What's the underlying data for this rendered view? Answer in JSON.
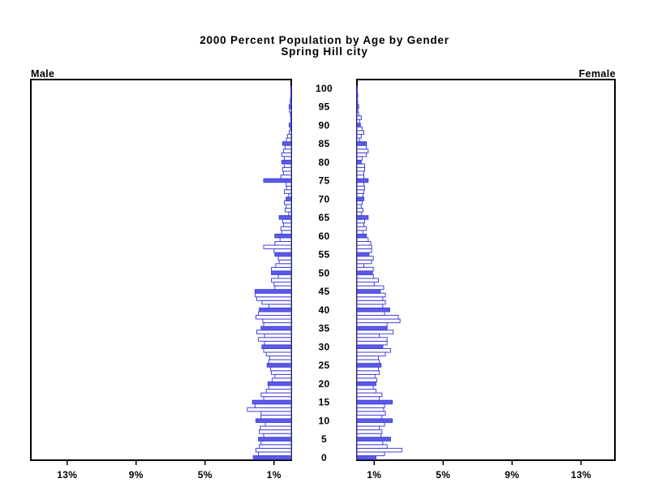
{
  "title": {
    "line1": "2000 Percent Population by Age by Gender",
    "line2": "Spring Hill city"
  },
  "panel_labels": {
    "male": "Male",
    "female": "Female"
  },
  "chart_data": {
    "type": "bar",
    "variant": "population_pyramid",
    "title": "2000 Percent Population by Age by Gender",
    "subtitle": "Spring Hill city",
    "x_unit": "percent of total population",
    "x_axis": {
      "male_tick_values": [
        13,
        9,
        5,
        1
      ],
      "male_tick_labels": [
        "13%",
        "9%",
        "5%",
        "1%"
      ],
      "female_tick_values": [
        1,
        5,
        9,
        13
      ],
      "female_tick_labels": [
        "1%",
        "5%",
        "9%",
        "13%"
      ],
      "x_max": 15.1
    },
    "age_axis": {
      "min": 0,
      "max": 100,
      "tick_labels": [
        "0",
        "5",
        "10",
        "15",
        "20",
        "25",
        "30",
        "35",
        "40",
        "45",
        "50",
        "55",
        "60",
        "65",
        "70",
        "75",
        "80",
        "85",
        "90",
        "95",
        "100"
      ]
    },
    "bar_style_rule": "single-year-of-age bars; ages at multiples of 5 are solid blue, other ages are white with blue outline",
    "colors": {
      "bar_outline": "#4343d9",
      "bar_solid_fill": "#5b5be8",
      "bar_open_fill": "#ffffff",
      "axis": "#000000",
      "text": "#000000"
    },
    "legend": "none",
    "grid": "off",
    "series": [
      {
        "name": "Male",
        "ages": "0-100 single years of age",
        "values": [
          2.2,
          1.9,
          2.05,
          1.85,
          1.75,
          1.9,
          1.6,
          1.85,
          1.8,
          1.5,
          2.05,
          1.75,
          1.75,
          2.55,
          2.1,
          2.25,
          1.6,
          1.75,
          1.45,
          1.3,
          1.35,
          1.1,
          0.95,
          1.15,
          1.2,
          1.4,
          1.3,
          1.25,
          1.45,
          1.6,
          1.7,
          1.55,
          1.9,
          1.55,
          2.0,
          1.75,
          1.6,
          1.65,
          2.05,
          1.9,
          1.85,
          1.3,
          1.7,
          2.0,
          2.1,
          2.1,
          0.95,
          1.0,
          1.15,
          0.75,
          1.15,
          1.15,
          0.9,
          0.7,
          0.75,
          0.95,
          1.0,
          1.6,
          0.95,
          0.65,
          0.95,
          0.55,
          0.6,
          0.45,
          0.5,
          0.7,
          0.15,
          0.35,
          0.3,
          0.4,
          0.3,
          0.15,
          0.4,
          0.27,
          0.3,
          1.6,
          0.6,
          0.45,
          0.5,
          0.4,
          0.55,
          0.4,
          0.55,
          0.45,
          0.35,
          0.5,
          0.28,
          0.22,
          0.12,
          0.05,
          0.12,
          0.03,
          0.03,
          0.05,
          0.1,
          0.12,
          0.06,
          0.05,
          0.02,
          0.02,
          0.02
        ]
      },
      {
        "name": "Female",
        "ages": "0-100 single years of age",
        "values": [
          1.1,
          1.6,
          2.6,
          1.75,
          1.5,
          1.95,
          1.4,
          1.45,
          1.3,
          1.6,
          2.05,
          1.45,
          1.65,
          1.55,
          1.6,
          2.05,
          1.3,
          1.45,
          1.1,
          0.95,
          1.1,
          1.15,
          1.05,
          1.3,
          1.25,
          1.4,
          1.3,
          1.25,
          1.65,
          1.95,
          1.5,
          1.75,
          1.75,
          1.3,
          2.1,
          1.75,
          1.75,
          2.5,
          2.4,
          1.6,
          1.9,
          1.5,
          1.65,
          1.5,
          1.65,
          1.35,
          1.55,
          1.0,
          1.25,
          0.95,
          0.9,
          0.95,
          0.4,
          0.85,
          0.95,
          0.7,
          0.85,
          0.85,
          0.8,
          0.65,
          0.55,
          0.35,
          0.55,
          0.4,
          0.45,
          0.65,
          0.25,
          0.35,
          0.25,
          0.3,
          0.4,
          0.35,
          0.4,
          0.45,
          0.4,
          0.65,
          0.4,
          0.4,
          0.45,
          0.45,
          0.25,
          0.3,
          0.55,
          0.65,
          0.55,
          0.55,
          0.15,
          0.25,
          0.4,
          0.3,
          0.2,
          0.15,
          0.25,
          0.1,
          0.05,
          0.1,
          0.05,
          0.03,
          0.05,
          0.02,
          0.02
        ]
      }
    ]
  }
}
